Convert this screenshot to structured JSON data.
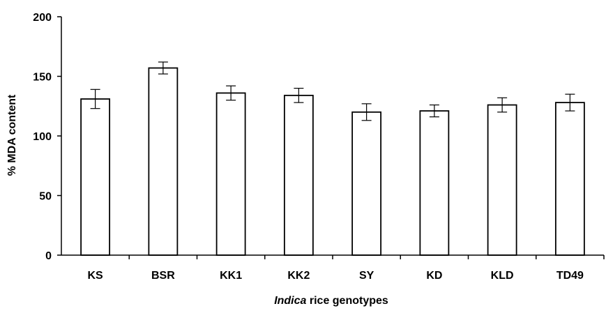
{
  "chart_data": {
    "type": "bar",
    "categories": [
      "KS",
      "BSR",
      "KK1",
      "KK2",
      "SY",
      "KD",
      "KLD",
      "TD49"
    ],
    "values": [
      131,
      157,
      136,
      134,
      120,
      121,
      126,
      128
    ],
    "errors": [
      8,
      5,
      6,
      6,
      7,
      5,
      6,
      7
    ],
    "ylim": [
      0,
      200
    ],
    "yticks": [
      0,
      50,
      100,
      150,
      200
    ],
    "ylabel": "% MDA content",
    "xlabel_italic": "Indica",
    "xlabel_rest": " rice genotypes",
    "grid": false,
    "bar_fill": "#ffffff",
    "bar_stroke": "#000000"
  }
}
